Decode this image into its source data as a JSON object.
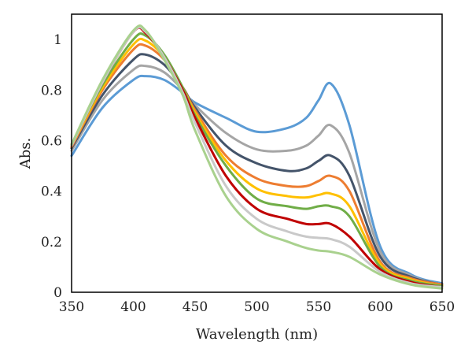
{
  "chart_data": {
    "type": "line",
    "title": "",
    "xlabel": "Wavelength (nm)",
    "ylabel": "Abs.",
    "xlim": [
      350,
      650
    ],
    "ylim": [
      0,
      1.1
    ],
    "xticks": [
      350,
      400,
      450,
      500,
      550,
      600,
      650
    ],
    "yticks": [
      0,
      0.2,
      0.4,
      0.6,
      0.8,
      1
    ],
    "ytick_labels": [
      "0",
      "0.2",
      "0.4",
      "0.6",
      "0.8",
      "1"
    ],
    "grid": false,
    "legend": "none",
    "x": [
      350,
      375,
      400,
      410,
      425,
      440,
      450,
      475,
      500,
      525,
      540,
      550,
      560,
      575,
      600,
      625,
      650
    ],
    "series": [
      {
        "color": "#5B9BD5",
        "values": [
          0.54,
          0.73,
          0.84,
          0.855,
          0.84,
          0.79,
          0.75,
          0.69,
          0.635,
          0.65,
          0.69,
          0.76,
          0.825,
          0.66,
          0.18,
          0.07,
          0.035
        ]
      },
      {
        "color": "#A5A5A5",
        "values": [
          0.56,
          0.76,
          0.88,
          0.895,
          0.87,
          0.8,
          0.74,
          0.63,
          0.565,
          0.56,
          0.58,
          0.62,
          0.66,
          0.55,
          0.16,
          0.065,
          0.03
        ]
      },
      {
        "color": "#44546A",
        "values": [
          0.57,
          0.78,
          0.92,
          0.94,
          0.9,
          0.81,
          0.73,
          0.58,
          0.51,
          0.48,
          0.49,
          0.52,
          0.54,
          0.46,
          0.14,
          0.06,
          0.03
        ]
      },
      {
        "color": "#ED7D31",
        "values": [
          0.575,
          0.8,
          0.96,
          0.975,
          0.92,
          0.81,
          0.72,
          0.54,
          0.45,
          0.42,
          0.42,
          0.44,
          0.46,
          0.4,
          0.12,
          0.055,
          0.03
        ]
      },
      {
        "color": "#FFC000",
        "values": [
          0.58,
          0.81,
          0.98,
          0.995,
          0.93,
          0.81,
          0.71,
          0.52,
          0.41,
          0.38,
          0.375,
          0.385,
          0.39,
          0.34,
          0.11,
          0.05,
          0.025
        ]
      },
      {
        "color": "#70AD47",
        "values": [
          0.585,
          0.82,
          1.0,
          1.015,
          0.94,
          0.81,
          0.7,
          0.5,
          0.37,
          0.34,
          0.33,
          0.34,
          0.34,
          0.3,
          0.1,
          0.045,
          0.025
        ]
      },
      {
        "color": "#C00000",
        "values": [
          0.58,
          0.83,
          1.03,
          1.025,
          0.93,
          0.8,
          0.69,
          0.46,
          0.33,
          0.29,
          0.27,
          0.27,
          0.27,
          0.22,
          0.09,
          0.04,
          0.02
        ]
      },
      {
        "color": "#C9C9C9",
        "values": [
          0.58,
          0.83,
          1.03,
          1.03,
          0.93,
          0.79,
          0.67,
          0.42,
          0.29,
          0.24,
          0.22,
          0.215,
          0.21,
          0.18,
          0.08,
          0.035,
          0.02
        ]
      },
      {
        "color": "#A9D18E",
        "values": [
          0.585,
          0.84,
          1.035,
          1.035,
          0.92,
          0.78,
          0.64,
          0.38,
          0.25,
          0.2,
          0.175,
          0.165,
          0.16,
          0.14,
          0.07,
          0.03,
          0.015
        ]
      }
    ]
  }
}
